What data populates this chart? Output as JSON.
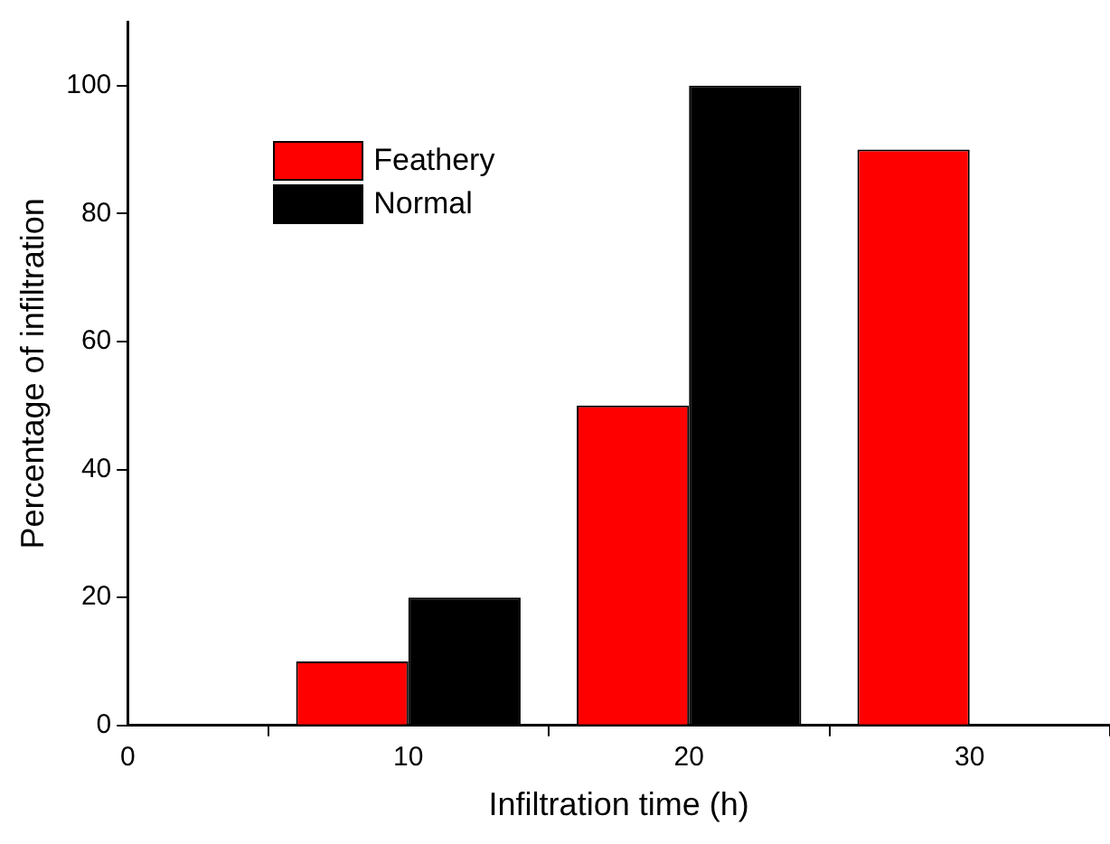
{
  "chart_data": {
    "type": "bar",
    "xlabel": "Infiltration time (h)",
    "ylabel": "Percentage of infiltration",
    "x": [
      10,
      20,
      30
    ],
    "series": [
      {
        "name": "Feathery",
        "color": "#ff0000",
        "values": [
          10,
          50,
          90
        ]
      },
      {
        "name": "Normal",
        "color": "#000000",
        "values": [
          20,
          100,
          null
        ]
      }
    ],
    "xlim": [
      0,
      35
    ],
    "xticks": [
      0,
      10,
      20,
      30
    ],
    "ylim": [
      0,
      110
    ],
    "yticks": [
      0,
      20,
      40,
      60,
      80,
      100
    ],
    "grid": false,
    "legend": "top left"
  }
}
